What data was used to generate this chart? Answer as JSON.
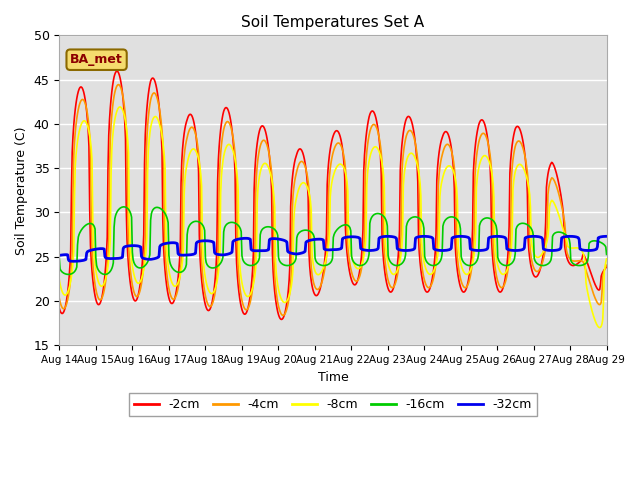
{
  "title": "Soil Temperatures Set A",
  "xlabel": "Time",
  "ylabel": "Soil Temperature (C)",
  "ylim": [
    15,
    50
  ],
  "xlim": [
    0,
    15
  ],
  "xtick_labels": [
    "Aug 14",
    "Aug 15",
    "Aug 16",
    "Aug 17",
    "Aug 18",
    "Aug 19",
    "Aug 20",
    "Aug 21",
    "Aug 22",
    "Aug 23",
    "Aug 24",
    "Aug 25",
    "Aug 26",
    "Aug 27",
    "Aug 28",
    "Aug 29"
  ],
  "series": [
    {
      "label": "-2cm",
      "color": "#ff0000",
      "lw": 1.2
    },
    {
      "label": "-4cm",
      "color": "#ff9900",
      "lw": 1.2
    },
    {
      "label": "-8cm",
      "color": "#ffff00",
      "lw": 1.2
    },
    {
      "label": "-16cm",
      "color": "#00cc00",
      "lw": 1.2
    },
    {
      "label": "-32cm",
      "color": "#0000ee",
      "lw": 2.0
    }
  ],
  "bg_color": "#e0e0e0",
  "fig_color": "#ffffff",
  "annotation_text": "BA_met"
}
